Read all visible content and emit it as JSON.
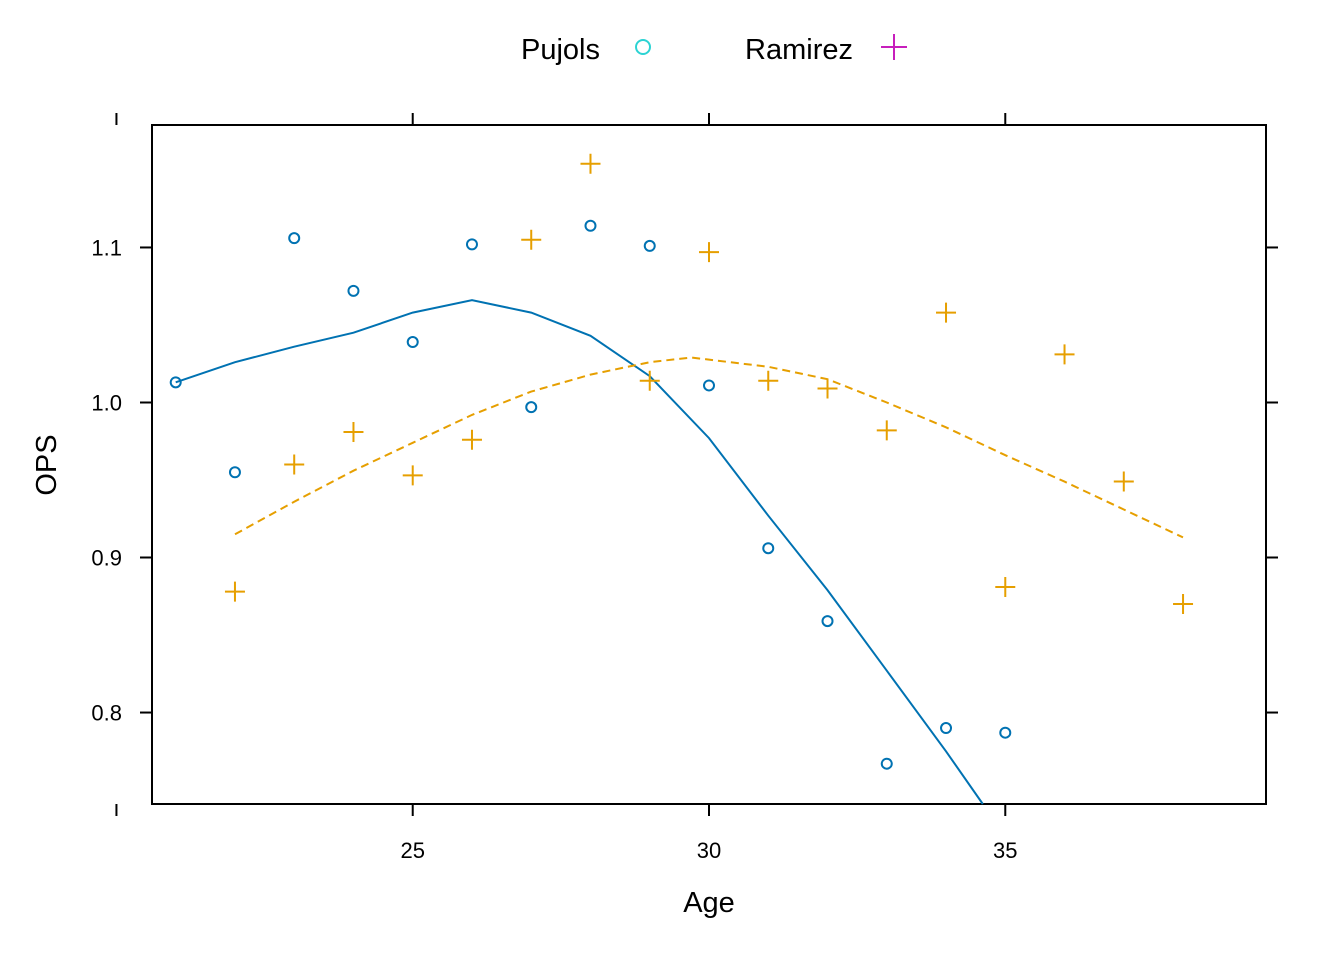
{
  "chart_data": {
    "type": "scatter",
    "xlabel": "Age",
    "ylabel": "OPS",
    "xlim": [
      20.6,
      39.4
    ],
    "ylim": [
      0.741,
      1.179
    ],
    "x_ticks": [
      25,
      30,
      35
    ],
    "x_tick_labels": [
      "25",
      "30",
      "35"
    ],
    "y_ticks": [
      0.8,
      0.9,
      1.0,
      1.1
    ],
    "y_tick_labels": [
      "0.8",
      "0.9",
      "1.0",
      "1.1"
    ],
    "legend": {
      "position": "top",
      "entries": [
        {
          "name": "Pujols",
          "symbol": "circle",
          "color": "#2cd3d3"
        },
        {
          "name": "Ramirez",
          "symbol": "plus",
          "color": "#c71fbc"
        }
      ]
    },
    "series": [
      {
        "name": "Pujols",
        "symbol": "circle",
        "color": "#0072b2",
        "points": [
          {
            "x": 21,
            "y": 1.013
          },
          {
            "x": 22,
            "y": 0.955
          },
          {
            "x": 23,
            "y": 1.106
          },
          {
            "x": 24,
            "y": 1.072
          },
          {
            "x": 25,
            "y": 1.039
          },
          {
            "x": 26,
            "y": 1.102
          },
          {
            "x": 27,
            "y": 0.997
          },
          {
            "x": 28,
            "y": 1.114
          },
          {
            "x": 29,
            "y": 1.101
          },
          {
            "x": 30,
            "y": 1.011
          },
          {
            "x": 31,
            "y": 0.906
          },
          {
            "x": 32,
            "y": 0.859
          },
          {
            "x": 33,
            "y": 0.767
          },
          {
            "x": 34,
            "y": 0.79
          },
          {
            "x": 35,
            "y": 0.787
          }
        ],
        "smooth": {
          "style": "solid",
          "points": [
            {
              "x": 21,
              "y": 1.013
            },
            {
              "x": 22,
              "y": 1.026
            },
            {
              "x": 23,
              "y": 1.036
            },
            {
              "x": 24,
              "y": 1.045
            },
            {
              "x": 25,
              "y": 1.058
            },
            {
              "x": 26,
              "y": 1.066
            },
            {
              "x": 27,
              "y": 1.058
            },
            {
              "x": 28,
              "y": 1.043
            },
            {
              "x": 29,
              "y": 1.017
            },
            {
              "x": 30,
              "y": 0.977
            },
            {
              "x": 31,
              "y": 0.927
            },
            {
              "x": 32,
              "y": 0.879
            },
            {
              "x": 33,
              "y": 0.827
            },
            {
              "x": 34,
              "y": 0.775
            },
            {
              "x": 34.62,
              "y": 0.741
            }
          ]
        }
      },
      {
        "name": "Ramirez",
        "symbol": "plus",
        "color": "#e69f00",
        "points": [
          {
            "x": 22,
            "y": 0.878
          },
          {
            "x": 23,
            "y": 0.96
          },
          {
            "x": 24,
            "y": 0.981
          },
          {
            "x": 25,
            "y": 0.953
          },
          {
            "x": 26,
            "y": 0.976
          },
          {
            "x": 27,
            "y": 1.105
          },
          {
            "x": 28,
            "y": 1.154
          },
          {
            "x": 29,
            "y": 1.014
          },
          {
            "x": 30,
            "y": 1.097
          },
          {
            "x": 31,
            "y": 1.014
          },
          {
            "x": 32,
            "y": 1.009
          },
          {
            "x": 33,
            "y": 0.982
          },
          {
            "x": 34,
            "y": 1.058
          },
          {
            "x": 35,
            "y": 0.881
          },
          {
            "x": 36,
            "y": 1.031
          },
          {
            "x": 37,
            "y": 0.949
          },
          {
            "x": 38,
            "y": 0.87
          }
        ],
        "smooth": {
          "style": "dashed",
          "points": [
            {
              "x": 22,
              "y": 0.915
            },
            {
              "x": 23,
              "y": 0.936
            },
            {
              "x": 24,
              "y": 0.956
            },
            {
              "x": 25,
              "y": 0.974
            },
            {
              "x": 26,
              "y": 0.992
            },
            {
              "x": 27,
              "y": 1.007
            },
            {
              "x": 28,
              "y": 1.018
            },
            {
              "x": 29,
              "y": 1.026
            },
            {
              "x": 29.7,
              "y": 1.029
            },
            {
              "x": 31,
              "y": 1.023
            },
            {
              "x": 32,
              "y": 1.015
            },
            {
              "x": 33,
              "y": 1.0
            },
            {
              "x": 34,
              "y": 0.984
            },
            {
              "x": 35,
              "y": 0.966
            },
            {
              "x": 36,
              "y": 0.949
            },
            {
              "x": 37,
              "y": 0.931
            },
            {
              "x": 38,
              "y": 0.913
            }
          ]
        }
      }
    ]
  }
}
